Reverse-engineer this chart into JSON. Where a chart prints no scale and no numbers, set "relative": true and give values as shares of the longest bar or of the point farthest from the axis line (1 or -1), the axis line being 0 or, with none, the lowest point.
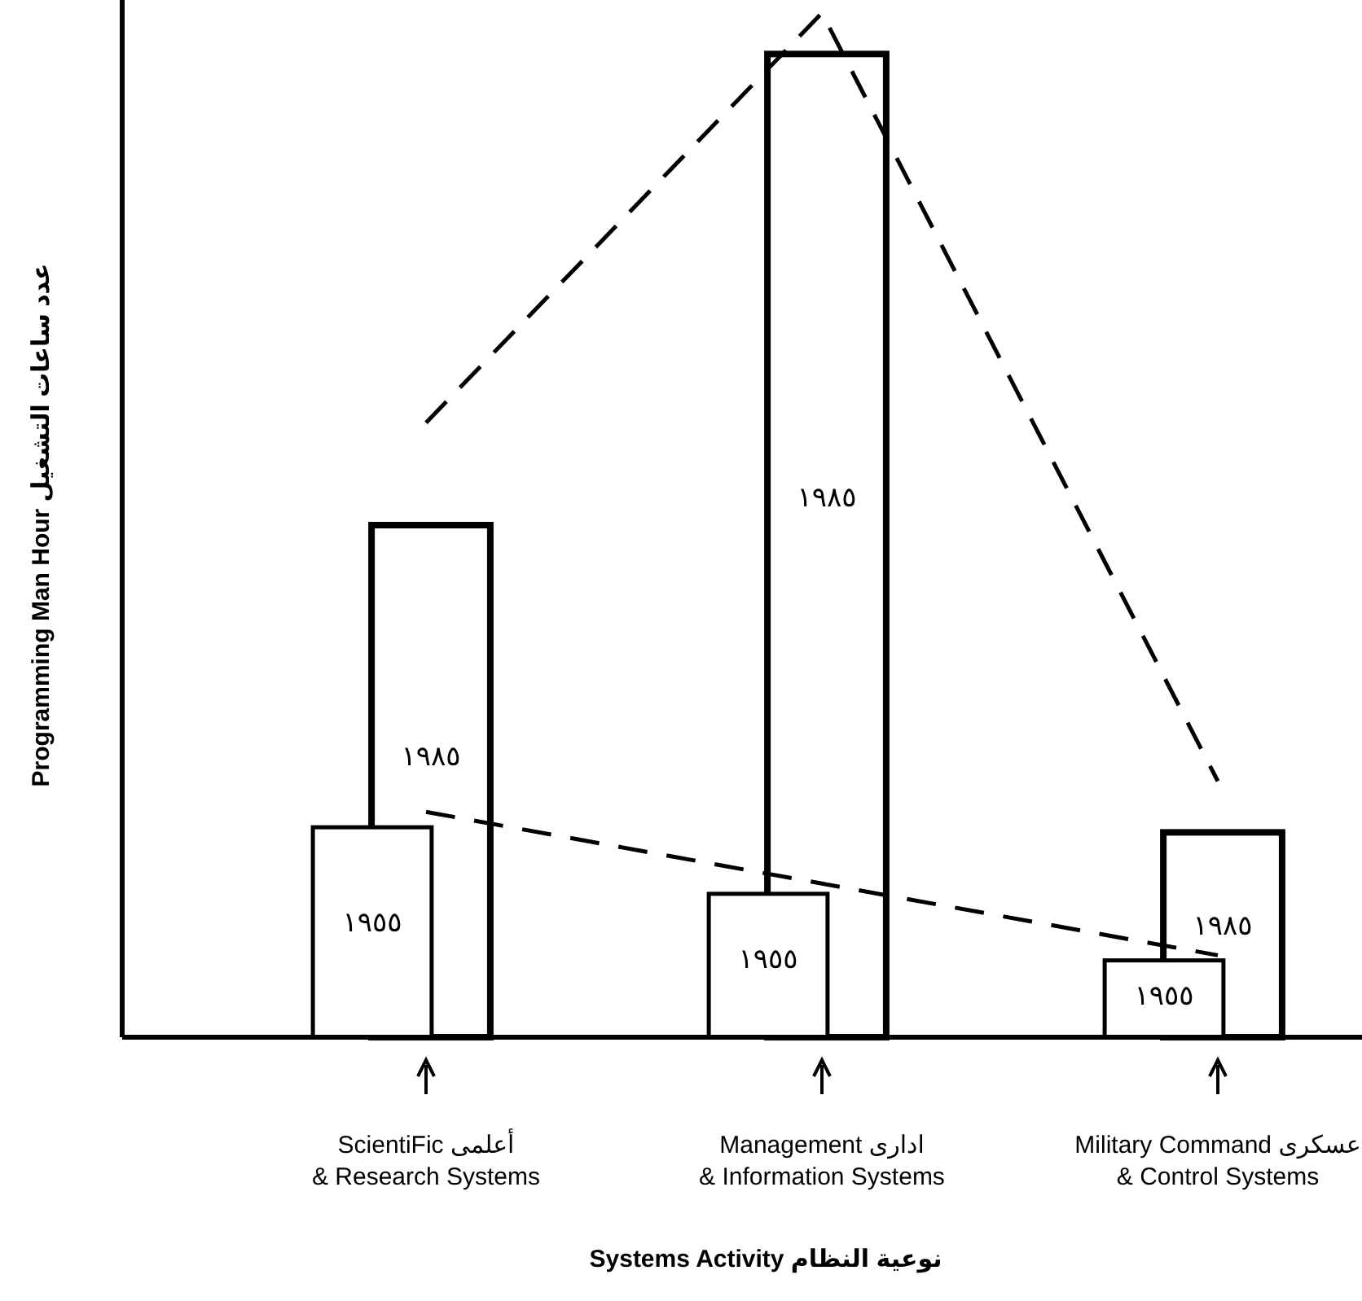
{
  "chart_data": {
    "type": "bar",
    "relative": true,
    "xlabel": "Systems Activity نوعية النظام",
    "ylabel": "Programming Man Hour عدد ساعات التشغيل",
    "categories": [
      "ScientiFic أعلمى\n& Research Systems",
      "Management    ادارى\n& Information Systems",
      "Military Command عسكرى\n& Control Systems"
    ],
    "series": [
      {
        "name": "١٩٨٥",
        "color": "#ffffff",
        "values": [
          0.5,
          0.96,
          0.2
        ]
      },
      {
        "name": "١٩٥٥",
        "color": "#ffffff",
        "values": [
          0.205,
          0.14,
          0.075
        ]
      },
      {
        "type": "line",
        "line_style": "dashed",
        "color": "#000000",
        "values": [
          0.6,
          1.0,
          0.25
        ]
      },
      {
        "type": "line",
        "line_style": "dashed",
        "color": "#000000",
        "values": [
          0.22,
          0.15,
          0.08
        ]
      }
    ]
  }
}
